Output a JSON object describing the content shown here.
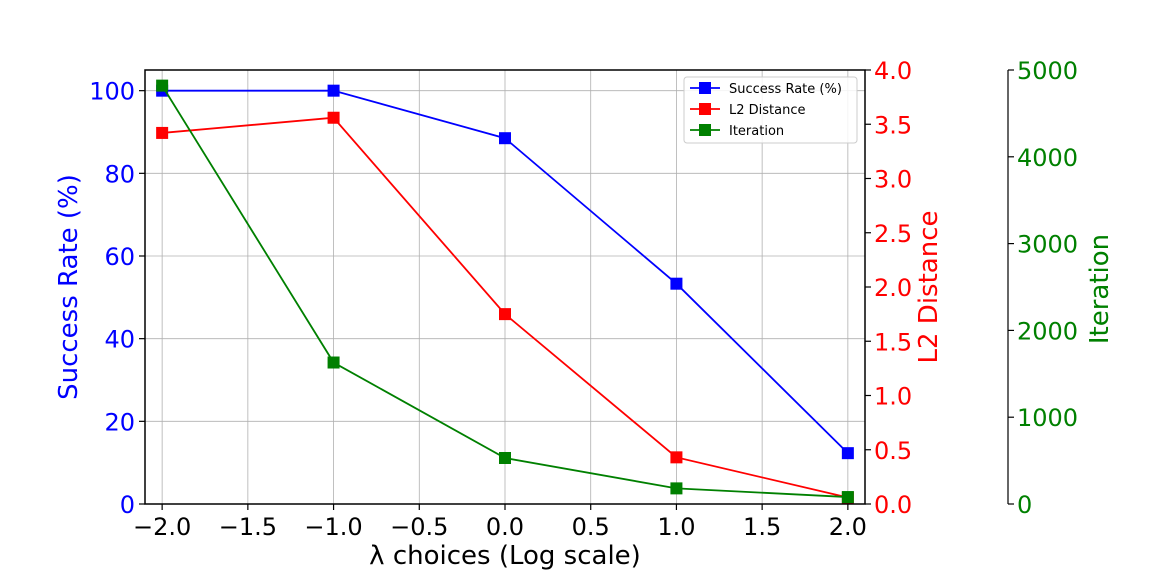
{
  "chart_data": {
    "type": "line",
    "x": [
      -2.0,
      -1.0,
      0.0,
      1.0,
      2.0
    ],
    "xlabel": "λ choices (Log scale)",
    "xlim": [
      -2.1,
      2.1
    ],
    "xticks": [
      -2.0,
      -1.5,
      -1.0,
      -0.5,
      0.0,
      0.5,
      1.0,
      1.5,
      2.0
    ],
    "xtick_labels": [
      "−2.0",
      "−1.5",
      "−1.0",
      "−0.5",
      "0.0",
      "0.5",
      "1.0",
      "1.5",
      "2.0"
    ],
    "grid": true,
    "legend_position": "top-right",
    "series": [
      {
        "name": "Success Rate (%)",
        "values": [
          100,
          100,
          88.5,
          53.3,
          12.3
        ],
        "color": "#0000ff",
        "axis": "left",
        "ylabel": "Success Rate (%)",
        "ylim": [
          0,
          105
        ],
        "ticks": [
          0,
          20,
          40,
          60,
          80,
          100
        ],
        "tick_labels": [
          "0",
          "20",
          "40",
          "60",
          "80",
          "100"
        ]
      },
      {
        "name": "L2 Distance",
        "values": [
          3.42,
          3.56,
          1.75,
          0.43,
          0.06
        ],
        "color": "#ff0000",
        "axis": "right1",
        "ylabel": "L2 Distance",
        "ylim": [
          0,
          4.0
        ],
        "ticks": [
          0,
          0.5,
          1.0,
          1.5,
          2.0,
          2.5,
          3.0,
          3.5,
          4.0
        ],
        "tick_labels": [
          "0.0",
          "0.5",
          "1.0",
          "1.5",
          "2.0",
          "2.5",
          "3.0",
          "3.5",
          "4.0"
        ]
      },
      {
        "name": "Iteration",
        "values": [
          4820,
          1630,
          530,
          180,
          80
        ],
        "color": "#008000",
        "axis": "right2",
        "ylabel": "Iteration",
        "ylim": [
          0,
          5000
        ],
        "ticks": [
          0,
          1000,
          2000,
          3000,
          4000,
          5000
        ],
        "tick_labels": [
          "0",
          "1000",
          "2000",
          "3000",
          "4000",
          "5000"
        ]
      }
    ]
  }
}
